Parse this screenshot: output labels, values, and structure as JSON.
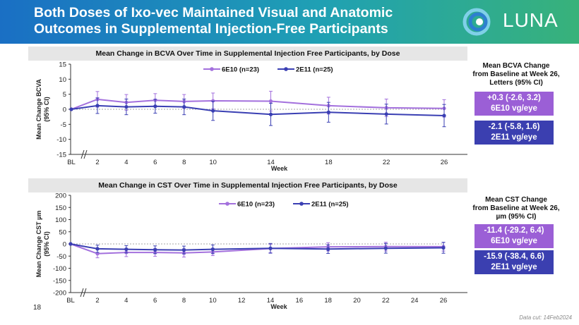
{
  "header": {
    "title_line1": "Both Doses of Ixo-vec Maintained Visual and Anatomic",
    "title_line2": "Outcomes in Supplemental Injection-Free Participants",
    "logo_text": "LUNA"
  },
  "colors": {
    "purple": "#a370dd",
    "navy": "#3a3fb3"
  },
  "panels": {
    "bcva": {
      "band_title": "Mean Change in BCVA Over Time in Supplemental Injection Free Participants, by Dose",
      "side_title": [
        "Mean BCVA Change",
        "from Baseline at Week 26,",
        "Letters (95% CI)"
      ],
      "box1": [
        "+0.3 (-2.6, 3.2)",
        "6E10 vg/eye"
      ],
      "box2": [
        "-2.1 (-5.8, 1.6)",
        "2E11 vg/eye"
      ]
    },
    "cst": {
      "band_title": "Mean Change in CST Over Time in Supplemental Injection Free Participants, by Dose",
      "side_title": [
        "Mean CST Change",
        "from Baseline at Week 26,",
        "µm (95% CI)"
      ],
      "box1": [
        "-11.4 (-29.2, 6.4)",
        "6E10 vg/eye"
      ],
      "box2": [
        "-15.9 (-38.4, 6.6)",
        "2E11 vg/eye"
      ]
    }
  },
  "footer": {
    "slide_number": "18",
    "data_cut": "Data cut: 14Feb2024"
  },
  "chart_data": [
    {
      "type": "line",
      "title": "Mean Change in BCVA Over Time in Supplemental Injection Free Participants, by Dose",
      "xlabel": "Week",
      "ylabel": "Mean Change BCVA (95% CI)",
      "ylim": [
        -15,
        15
      ],
      "yticks": [
        15,
        10,
        5,
        0,
        -5,
        -10,
        -15
      ],
      "x": [
        0,
        2,
        4,
        6,
        8,
        10,
        14,
        18,
        22,
        26
      ],
      "xtick_labels": [
        {
          "x": 0,
          "label": "BL"
        },
        {
          "x": 2,
          "label": "2"
        },
        {
          "x": 4,
          "label": "4"
        },
        {
          "x": 6,
          "label": "6"
        },
        {
          "x": 8,
          "label": "8"
        },
        {
          "x": 10,
          "label": "10"
        },
        {
          "x": 14,
          "label": "14"
        },
        {
          "x": 18,
          "label": "18"
        },
        {
          "x": 22,
          "label": "22"
        },
        {
          "x": 26,
          "label": "26"
        }
      ],
      "series": [
        {
          "name": "6E10 (n=23)",
          "color": "#a370dd",
          "values": [
            0,
            3.3,
            2.3,
            3.0,
            2.6,
            2.8,
            2.7,
            1.2,
            0.5,
            0.3
          ],
          "err": [
            0,
            2.6,
            2.6,
            2.2,
            2.3,
            2.6,
            3.3,
            2.8,
            2.9,
            2.9
          ]
        },
        {
          "name": "2E11 (n=25)",
          "color": "#3a3fb3",
          "values": [
            0,
            1.2,
            0.8,
            1.0,
            0.8,
            -0.5,
            -1.7,
            -1.0,
            -1.6,
            -2.1
          ],
          "err": [
            0,
            2.6,
            2.6,
            2.3,
            2.6,
            3.2,
            3.7,
            3.3,
            3.3,
            3.7
          ]
        }
      ]
    },
    {
      "type": "line",
      "title": "Mean Change in CST Over Time in Supplemental Injection Free Participants, by Dose",
      "xlabel": "Week",
      "ylabel": "Mean Change CST µm (95% CI)",
      "ylim": [
        -200,
        200
      ],
      "yticks": [
        200,
        150,
        100,
        50,
        0,
        -50,
        -100,
        -150,
        -200
      ],
      "x": [
        0,
        2,
        4,
        6,
        8,
        10,
        14,
        18,
        22,
        26
      ],
      "xtick_labels": [
        {
          "x": 0,
          "label": "BL"
        },
        {
          "x": 2,
          "label": "2"
        },
        {
          "x": 4,
          "label": "4"
        },
        {
          "x": 6,
          "label": "6"
        },
        {
          "x": 8,
          "label": "8"
        },
        {
          "x": 10,
          "label": "10"
        },
        {
          "x": 12,
          "label": "12"
        },
        {
          "x": 14,
          "label": "14"
        },
        {
          "x": 16,
          "label": "16"
        },
        {
          "x": 18,
          "label": "18"
        },
        {
          "x": 20,
          "label": "20"
        },
        {
          "x": 22,
          "label": "22"
        },
        {
          "x": 24,
          "label": "24"
        },
        {
          "x": 26,
          "label": "26"
        }
      ],
      "series": [
        {
          "name": "6E10 (n=23)",
          "color": "#a370dd",
          "values": [
            0,
            -40,
            -35,
            -35,
            -37,
            -33,
            -19,
            -12,
            -11,
            -11.4
          ],
          "err": [
            0,
            17,
            17,
            16,
            17,
            15,
            17,
            17,
            18,
            17.8
          ]
        },
        {
          "name": "2E11 (n=25)",
          "color": "#3a3fb3",
          "values": [
            0,
            -20,
            -22,
            -24,
            -25,
            -22,
            -18,
            -21,
            -18,
            -15.9
          ],
          "err": [
            0,
            15,
            15,
            16,
            16,
            18,
            20,
            18,
            20,
            22.5
          ]
        }
      ]
    }
  ]
}
